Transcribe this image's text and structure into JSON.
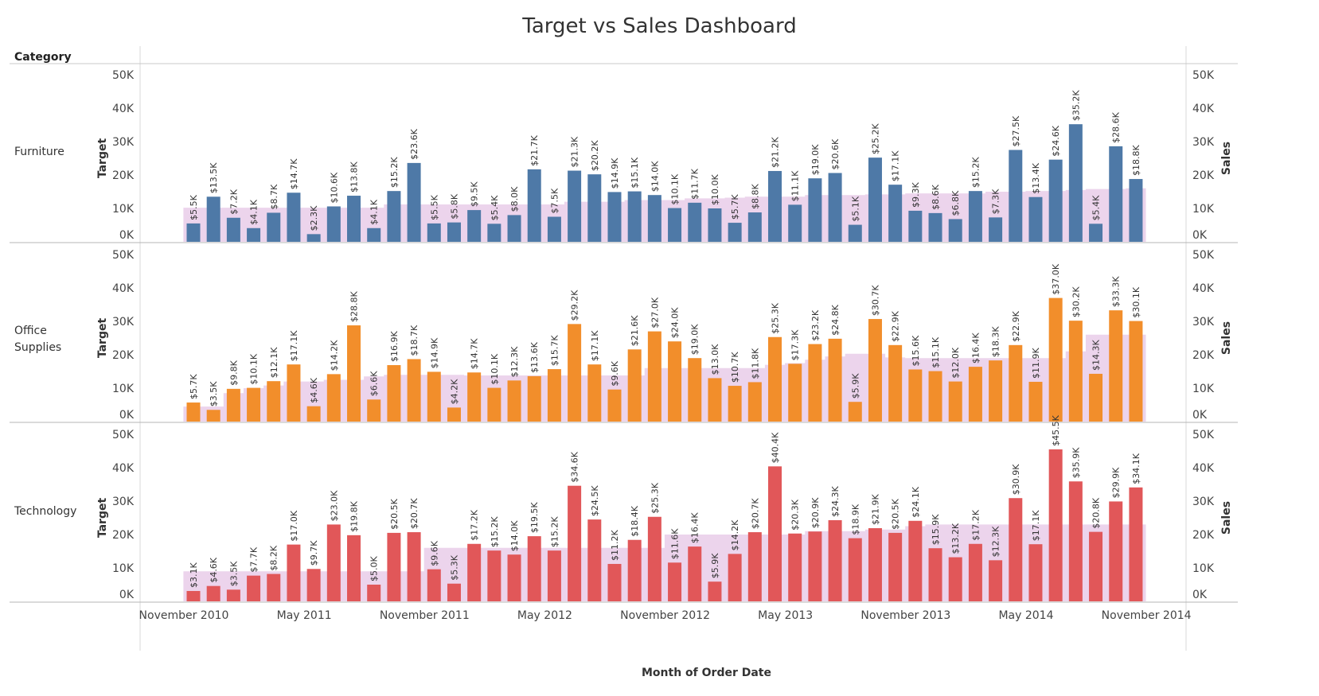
{
  "title": "Target vs Sales Dashboard",
  "header_label": "Category",
  "axes": {
    "x_label": "Month of Order Date",
    "left_label": "Target",
    "right_label": "Sales",
    "y_ticks": [
      "0K",
      "10K",
      "20K",
      "30K",
      "40K",
      "50K"
    ],
    "x_ticks": [
      "November 2010",
      "May 2011",
      "November 2011",
      "May 2012",
      "November 2012",
      "May 2013",
      "November 2013",
      "May 2014",
      "November 2014"
    ]
  },
  "chart_data": {
    "type": "bar",
    "x_start": "2010-11",
    "x_end": "2014-12",
    "ylim": [
      0,
      50
    ],
    "unit": "K",
    "target_color": "#e6c6e6",
    "series": [
      {
        "name": "Furniture",
        "label": "Furniture",
        "color": "#4e79a7",
        "sales": [
          5.5,
          13.5,
          7.2,
          4.1,
          8.7,
          14.7,
          2.3,
          10.6,
          13.8,
          4.1,
          15.2,
          23.6,
          5.5,
          5.8,
          9.5,
          5.4,
          8.0,
          21.7,
          7.5,
          21.3,
          20.2,
          14.9,
          15.1,
          14.0,
          10.1,
          11.7,
          10.0,
          5.7,
          8.8,
          21.2,
          11.1,
          19.0,
          20.6,
          5.1,
          25.2,
          17.1,
          9.3,
          8.6,
          6.8,
          15.2,
          7.3,
          27.5,
          13.4,
          24.6,
          35.2,
          5.4,
          28.6,
          18.8
        ],
        "labels": [
          "$5.5K",
          "$13.5K",
          "$7.2K",
          "$4.1K",
          "$8.7K",
          "$14.7K",
          "$2.3K",
          "$10.6K",
          "$13.8K",
          "$4.1K",
          "$15.2K",
          "$23.6K",
          "$5.5K",
          "$5.8K",
          "$9.5K",
          "$5.4K",
          "$8.0K",
          "$21.7K",
          "$7.5K",
          "$21.3K",
          "$20.2K",
          "$14.9K",
          "$15.1K",
          "$14.0K",
          "$10.1K",
          "$11.7K",
          "$10.0K",
          "$5.7K",
          "$8.8K",
          "$21.2K",
          "$11.1K",
          "$19.0K",
          "$20.6K",
          "$5.1K",
          "$25.2K",
          "$17.1K",
          "$9.3K",
          "$8.6K",
          "$6.8K",
          "$15.2K",
          "$7.3K",
          "$27.5K",
          "$13.4K",
          "$24.6K",
          "$35.2K",
          "$5.4K",
          "$28.6K",
          "$18.8K"
        ],
        "target": [
          10.2,
          10.2,
          10.2,
          10.2,
          10.2,
          10.2,
          10.2,
          10.2,
          10.2,
          10.2,
          11.2,
          11.2,
          11.2,
          11.2,
          11.2,
          11.2,
          11.2,
          11.2,
          11.2,
          12.0,
          12.0,
          12.0,
          12.5,
          12.5,
          12.5,
          13.0,
          13.0,
          13.2,
          13.5,
          13.5,
          13.5,
          14.0,
          14.0,
          14.0,
          14.2,
          14.2,
          14.5,
          14.5,
          14.5,
          14.5,
          15.0,
          15.0,
          15.2,
          15.2,
          15.5,
          15.8,
          15.8,
          16.0
        ]
      },
      {
        "name": "Office Supplies",
        "label": [
          "Office",
          "Supplies"
        ],
        "color": "#f28e2b",
        "sales": [
          5.7,
          3.5,
          9.8,
          10.1,
          12.1,
          17.1,
          4.6,
          14.2,
          28.8,
          6.6,
          16.9,
          18.7,
          14.9,
          4.2,
          14.7,
          10.1,
          12.3,
          13.6,
          15.7,
          29.2,
          17.1,
          9.6,
          21.6,
          27.0,
          24.0,
          19.0,
          13.0,
          10.7,
          11.8,
          25.3,
          17.3,
          23.2,
          24.8,
          5.9,
          30.7,
          22.9,
          15.6,
          15.1,
          12.0,
          16.4,
          18.3,
          22.9,
          11.9,
          37.0,
          30.2,
          14.3,
          33.3,
          30.1
        ],
        "labels": [
          "$5.7K",
          "$3.5K",
          "$9.8K",
          "$10.1K",
          "$12.1K",
          "$17.1K",
          "$4.6K",
          "$14.2K",
          "$28.8K",
          "$6.6K",
          "$16.9K",
          "$18.7K",
          "$14.9K",
          "$4.2K",
          "$14.7K",
          "$10.1K",
          "$12.3K",
          "$13.6K",
          "$15.7K",
          "$29.2K",
          "$17.1K",
          "$9.6K",
          "$21.6K",
          "$27.0K",
          "$24.0K",
          "$19.0K",
          "$13.0K",
          "$10.7K",
          "$11.8K",
          "$25.3K",
          "$17.3K",
          "$23.2K",
          "$24.8K",
          "$5.9K",
          "$30.7K",
          "$22.9K",
          "$15.6K",
          "$15.1K",
          "$12.0K",
          "$16.4K",
          "$18.3K",
          "$22.9K",
          "$11.9K",
          "$37.0K",
          "$30.2K",
          "$14.3K",
          "$33.3K",
          "$30.1K"
        ],
        "target": [
          4.5,
          4.5,
          8.5,
          10.0,
          10.8,
          12.0,
          12.0,
          12.5,
          12.5,
          13.5,
          14.0,
          14.0,
          14.0,
          14.0,
          13.8,
          13.8,
          13.8,
          13.8,
          13.8,
          13.8,
          13.8,
          13.8,
          13.8,
          16.0,
          16.0,
          16.0,
          16.0,
          16.0,
          16.0,
          17.0,
          17.5,
          18.5,
          19.5,
          20.3,
          20.3,
          19.2,
          19.0,
          19.0,
          19.0,
          19.0,
          19.0,
          19.0,
          19.0,
          19.0,
          21.0,
          26.0,
          26.0,
          26.0
        ]
      },
      {
        "name": "Technology",
        "label": "Technology",
        "color": "#e15759",
        "sales": [
          3.1,
          4.6,
          3.5,
          7.7,
          8.2,
          17.0,
          9.7,
          23.0,
          19.8,
          5.0,
          20.5,
          20.7,
          9.6,
          5.3,
          17.2,
          15.2,
          14.0,
          19.5,
          15.2,
          34.6,
          24.5,
          11.2,
          18.4,
          25.3,
          11.6,
          16.4,
          5.9,
          14.2,
          20.7,
          40.4,
          20.3,
          20.9,
          24.3,
          18.9,
          21.9,
          20.5,
          24.1,
          15.9,
          13.2,
          17.2,
          12.3,
          30.9,
          17.1,
          45.5,
          35.9,
          20.8,
          29.9,
          34.1
        ],
        "labels": [
          "$3.1K",
          "$4.6K",
          "$3.5K",
          "$7.7K",
          "$8.2K",
          "$17.0K",
          "$9.7K",
          "$23.0K",
          "$19.8K",
          "$5.0K",
          "$20.5K",
          "$20.7K",
          "$9.6K",
          "$5.3K",
          "$17.2K",
          "$15.2K",
          "$14.0K",
          "$19.5K",
          "$15.2K",
          "$34.6K",
          "$24.5K",
          "$11.2K",
          "$18.4K",
          "$25.3K",
          "$11.6K",
          "$16.4K",
          "$5.9K",
          "$14.2K",
          "$20.7K",
          "$40.4K",
          "$20.3K",
          "$20.9K",
          "$24.3K",
          "$18.9K",
          "$21.9K",
          "$20.5K",
          "$24.1K",
          "$15.9K",
          "$13.2K",
          "$17.2K",
          "$12.3K",
          "$30.9K",
          "$17.1K",
          "$45.5K",
          "$35.9K",
          "$20.8K",
          "$29.9K",
          "$34.1K"
        ],
        "target": [
          9.0,
          9.0,
          9.0,
          9.0,
          9.0,
          9.0,
          9.0,
          9.0,
          9.0,
          9.0,
          9.0,
          9.0,
          16.0,
          16.0,
          16.0,
          16.0,
          16.0,
          16.0,
          16.0,
          16.0,
          16.0,
          16.0,
          16.0,
          16.0,
          20.0,
          20.0,
          20.0,
          20.0,
          20.0,
          20.0,
          20.0,
          21.0,
          21.0,
          21.0,
          21.5,
          21.5,
          22.5,
          23.0,
          23.0,
          23.0,
          23.0,
          23.0,
          23.0,
          23.0,
          23.0,
          23.0,
          23.0,
          23.0
        ]
      }
    ]
  }
}
